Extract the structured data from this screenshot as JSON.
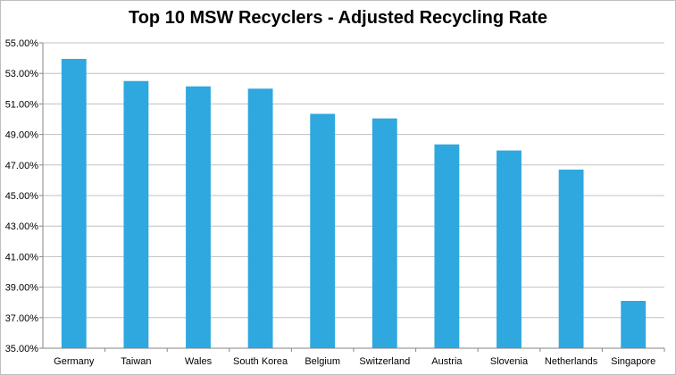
{
  "chart_data": {
    "type": "bar",
    "title": "Top 10 MSW Recyclers - Adjusted Recycling Rate",
    "xlabel": "",
    "ylabel": "",
    "categories": [
      "Germany",
      "Taiwan",
      "Wales",
      "South Korea",
      "Belgium",
      "Switzerland",
      "Austria",
      "Slovenia",
      "Netherlands",
      "Singapore"
    ],
    "values": [
      53.95,
      52.5,
      52.15,
      52.0,
      50.35,
      50.05,
      48.35,
      47.95,
      46.7,
      38.1
    ],
    "ylim": [
      35,
      55
    ],
    "yticks": [
      "35.00%",
      "37.00%",
      "39.00%",
      "41.00%",
      "43.00%",
      "45.00%",
      "47.00%",
      "49.00%",
      "51.00%",
      "53.00%",
      "55.00%"
    ],
    "grid": true,
    "legend": "none",
    "bar_color": "#2ea8df",
    "grid_color": "#c0c0c0"
  }
}
